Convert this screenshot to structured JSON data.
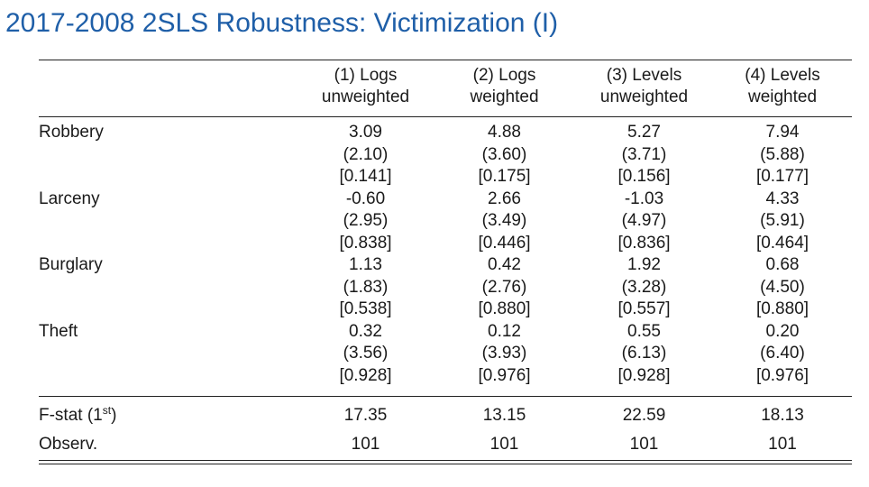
{
  "title": "2017-2008 2SLS Robustness: Victimization (I)",
  "table": {
    "columns": [
      {
        "line1": "(1) Logs",
        "line2": "unweighted"
      },
      {
        "line1": "(2) Logs",
        "line2": "weighted"
      },
      {
        "line1": "(3) Levels",
        "line2": "unweighted"
      },
      {
        "line1": "(4) Levels",
        "line2": "weighted"
      }
    ],
    "rows": [
      {
        "label": "Robbery",
        "coef": [
          "3.09",
          "4.88",
          "5.27",
          "7.94"
        ],
        "se": [
          "(2.10)",
          "(3.60)",
          "(3.71)",
          "(5.88)"
        ],
        "p": [
          "[0.141]",
          "[0.175]",
          "[0.156]",
          "[0.177]"
        ]
      },
      {
        "label": "Larceny",
        "coef": [
          "-0.60",
          "2.66",
          "-1.03",
          "4.33"
        ],
        "se": [
          "(2.95)",
          "(3.49)",
          "(4.97)",
          "(5.91)"
        ],
        "p": [
          "[0.838]",
          "[0.446]",
          "[0.836]",
          "[0.464]"
        ]
      },
      {
        "label": "Burglary",
        "coef": [
          "1.13",
          "0.42",
          "1.92",
          "0.68"
        ],
        "se": [
          "(1.83)",
          "(2.76)",
          "(3.28)",
          "(4.50)"
        ],
        "p": [
          "[0.538]",
          "[0.880]",
          "[0.557]",
          "[0.880]"
        ]
      },
      {
        "label": "Theft",
        "coef": [
          "0.32",
          "0.12",
          "0.55",
          "0.20"
        ],
        "se": [
          "(3.56)",
          "(3.93)",
          "(6.13)",
          "(6.40)"
        ],
        "p": [
          "[0.928]",
          "[0.976]",
          "[0.928]",
          "[0.976]"
        ]
      }
    ],
    "footer": {
      "fstat": {
        "label": "F-stat (1",
        "label_sup": "st",
        "label_end": ")",
        "values": [
          "17.35",
          "13.15",
          "22.59",
          "18.13"
        ]
      },
      "obs": {
        "label": "Observ.",
        "values": [
          "101",
          "101",
          "101",
          "101"
        ]
      }
    }
  },
  "colors": {
    "title": "#1f5fa8",
    "text": "#1a1a1a",
    "rules": "#222222"
  }
}
